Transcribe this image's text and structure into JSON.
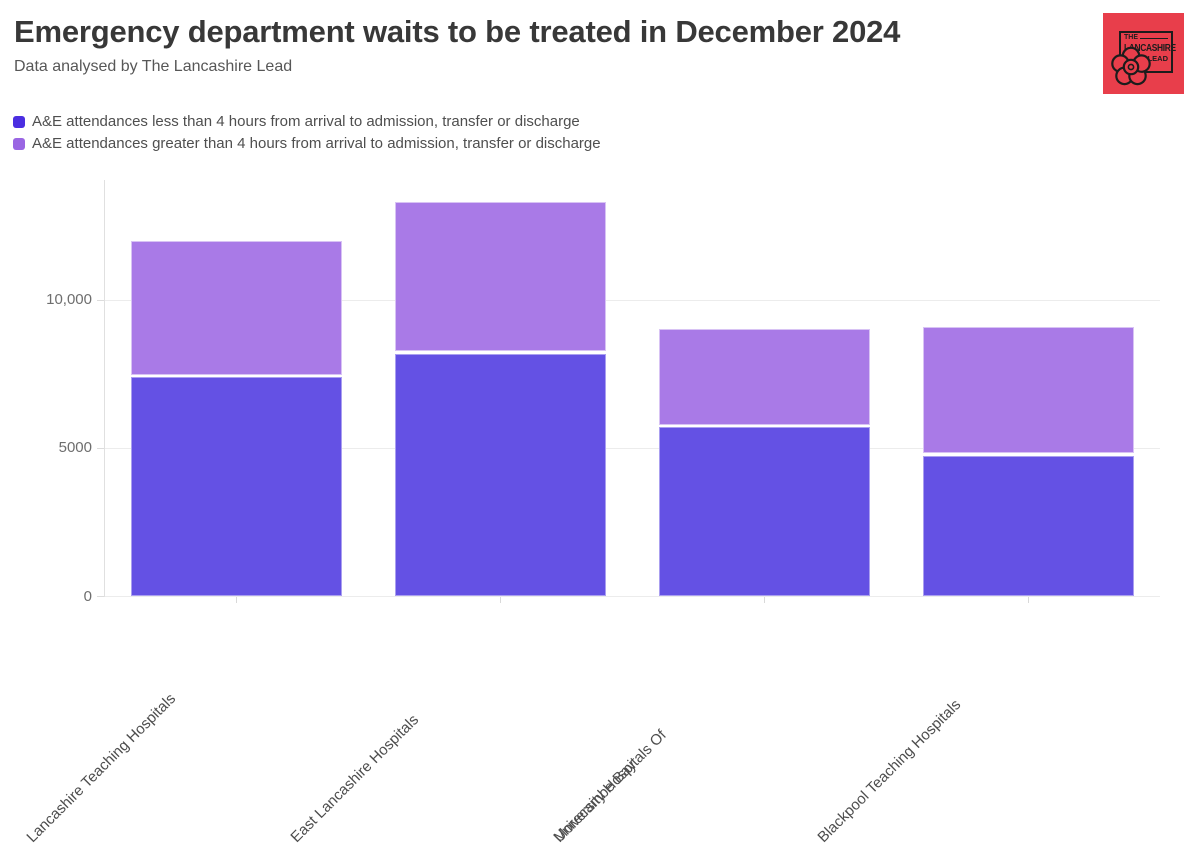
{
  "logo": {
    "text_top": "THE",
    "text_main": "LANCASHIRE",
    "text_bottom": "LEAD",
    "bg_color": "#e83e4b",
    "ink_color": "#1c1c1c"
  },
  "chart_data": {
    "type": "bar",
    "stacked": true,
    "title": "Emergency department waits to be treated in December 2024",
    "subtitle": "Data analysed by The Lancashire Lead",
    "categories": [
      "Lancashire Teaching Hospitals",
      "East Lancashire Hospitals",
      "University Hospitals Of\nMorecambe Bay",
      "Blackpool Teaching Hospitals"
    ],
    "series": [
      {
        "name": "A&E attendances less than 4 hours from arrival to admission, transfer or discharge",
        "legend_color": "#4b2ee1",
        "bar_color": "#6451e4",
        "values": [
          7410,
          8190,
          5720,
          4760
        ]
      },
      {
        "name": "A&E attendances greater than 4 hours from arrival to admission, transfer or discharge",
        "legend_color": "#9a66e3",
        "bar_color": "#a97ae7",
        "values": [
          4610,
          5140,
          3320,
          4330
        ]
      }
    ],
    "totals": [
      12020,
      13330,
      9040,
      9090
    ],
    "xlabel": "",
    "ylabel": "",
    "ylim": [
      0,
      14000
    ],
    "yticks": [
      {
        "value": 0,
        "label": "0"
      },
      {
        "value": 5000,
        "label": "5000"
      },
      {
        "value": 10000,
        "label": "10,000"
      }
    ],
    "grid": true,
    "legend_position": "top-left",
    "x_label_rotation_deg": -45
  }
}
